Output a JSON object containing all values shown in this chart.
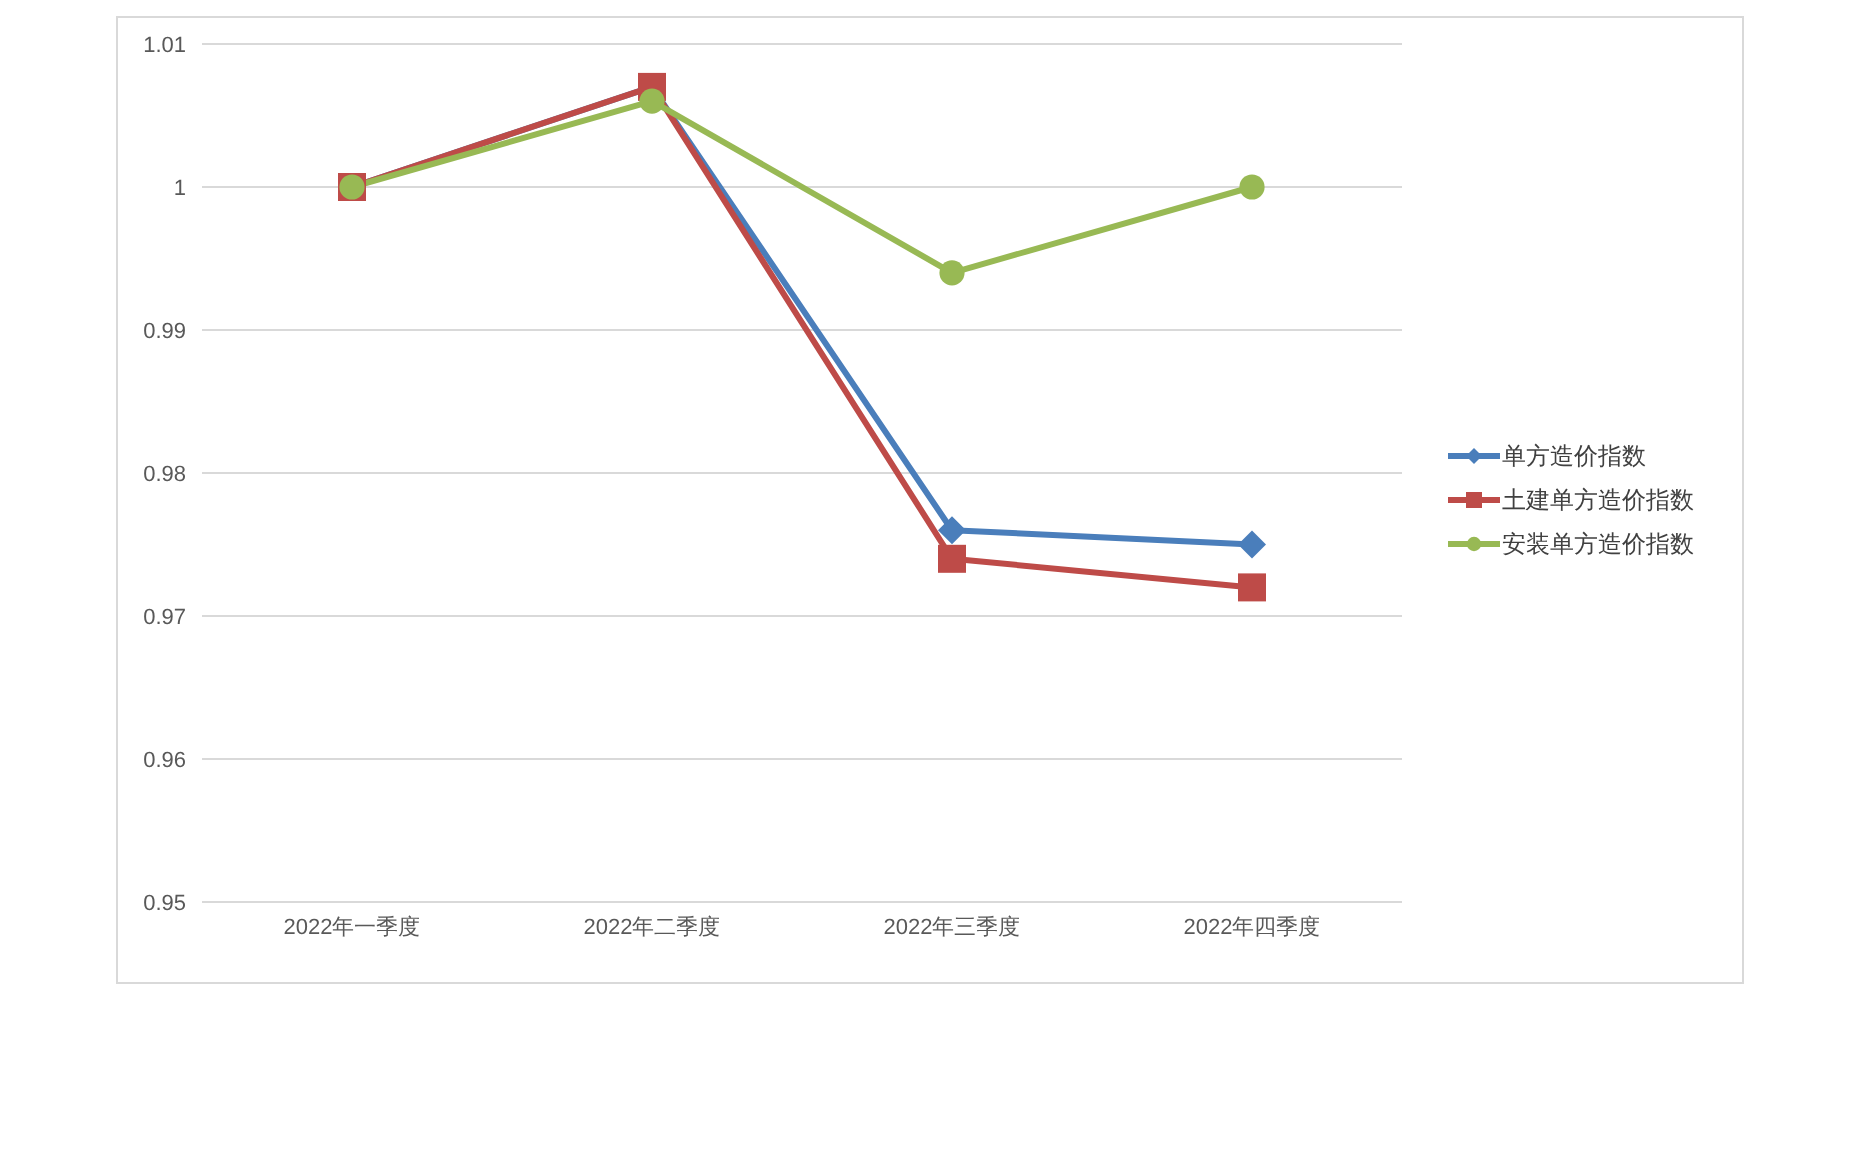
{
  "chart_data": {
    "type": "line",
    "categories": [
      "2022年一季度",
      "2022年二季度",
      "2022年三季度",
      "2022年四季度"
    ],
    "series": [
      {
        "name": "单方造价指数",
        "color": "#4a7ebb",
        "marker": "diamond",
        "values": [
          1.0,
          1.007,
          0.976,
          0.975
        ]
      },
      {
        "name": "土建单方造价指数",
        "color": "#be4b48",
        "marker": "square",
        "values": [
          1.0,
          1.007,
          0.974,
          0.972
        ]
      },
      {
        "name": "安装单方造价指数",
        "color": "#98b954",
        "marker": "circle",
        "values": [
          1.0,
          1.006,
          0.994,
          1.0
        ]
      }
    ],
    "ylim": [
      0.95,
      1.01
    ],
    "yticks": [
      0.95,
      0.96,
      0.97,
      0.98,
      0.99,
      1,
      1.01
    ],
    "grid": "y",
    "legend": "right",
    "line_style": "solid"
  }
}
